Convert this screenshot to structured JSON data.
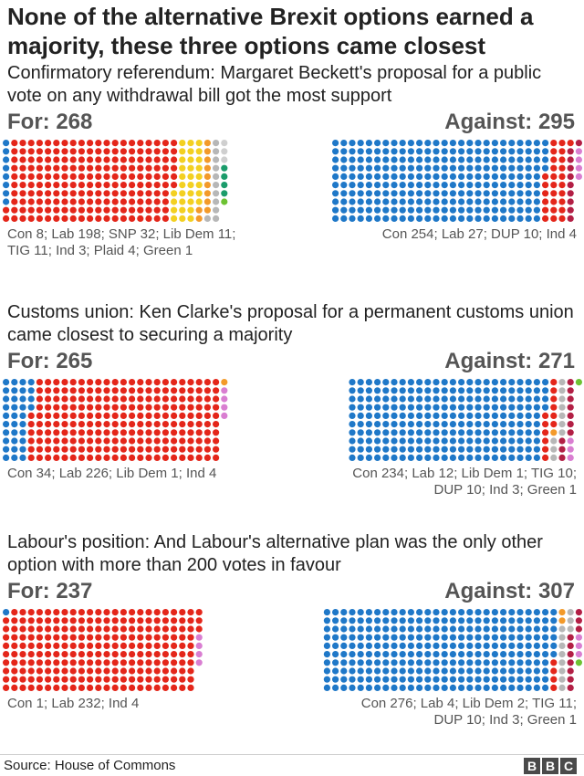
{
  "title": "None of the alternative Brexit options earned a majority, these three options came closest",
  "source": "Source: House of Commons",
  "logo_letters": [
    "B",
    "B",
    "C"
  ],
  "party_colors": {
    "Con": "#1f78c8",
    "Lab": "#e4261a",
    "SNP": "#f3d021",
    "Lib Dem": "#f39a2a",
    "TIG": "#b7b7b7",
    "Ind": "#cfcfcf",
    "Plaid": "#1b9c6b",
    "Green": "#6dc233",
    "DUP": "#b21f45",
    "Plaid_Green_alt": "#d97ed1"
  },
  "chart_data": [
    {
      "type": "waffle",
      "title": "Confirmatory referendum: Margaret Beckett's proposal for a public vote on any withdrawal bill got the most support",
      "for": {
        "label": "For: 268",
        "total": 268,
        "breakdown_lines": [
          "Con 8; Lab 198; SNP 32; Lib Dem 11;",
          "TIG 11; Ind 3; Plaid 4; Green 1"
        ],
        "parties": [
          {
            "party": "Con",
            "seats": 8,
            "color": "#1f78c8"
          },
          {
            "party": "Lab",
            "seats": 198,
            "color": "#e4261a"
          },
          {
            "party": "SNP",
            "seats": 32,
            "color": "#f3d021"
          },
          {
            "party": "Lib Dem",
            "seats": 11,
            "color": "#f39a2a"
          },
          {
            "party": "TIG",
            "seats": 11,
            "color": "#b7b7b7"
          },
          {
            "party": "Ind",
            "seats": 3,
            "color": "#cfcfcf"
          },
          {
            "party": "Plaid",
            "seats": 4,
            "color": "#1b9c6b"
          },
          {
            "party": "Green",
            "seats": 1,
            "color": "#6dc233"
          }
        ]
      },
      "against": {
        "label": "Against: 295",
        "total": 295,
        "breakdown_lines": [
          "Con 254; Lab 27; DUP 10; Ind 4"
        ],
        "parties": [
          {
            "party": "Con",
            "seats": 254,
            "color": "#1f78c8"
          },
          {
            "party": "Lab",
            "seats": 27,
            "color": "#e4261a"
          },
          {
            "party": "DUP",
            "seats": 10,
            "color": "#b21f45"
          },
          {
            "party": "Ind",
            "seats": 4,
            "color": "#d97ed1"
          }
        ]
      }
    },
    {
      "type": "waffle",
      "title": "Customs union: Ken Clarke's proposal for a permanent customs union came closest to securing a majority",
      "for": {
        "label": "For: 265",
        "total": 265,
        "breakdown_lines": [
          "Con 34; Lab 226; Lib Dem 1; Ind 4"
        ],
        "parties": [
          {
            "party": "Con",
            "seats": 34,
            "color": "#1f78c8"
          },
          {
            "party": "Lab",
            "seats": 226,
            "color": "#e4261a"
          },
          {
            "party": "Lib Dem",
            "seats": 1,
            "color": "#f39a2a"
          },
          {
            "party": "Ind",
            "seats": 4,
            "color": "#d97ed1"
          }
        ]
      },
      "against": {
        "label": "Against: 271",
        "total": 271,
        "breakdown_lines": [
          "Con 234; Lab 12; Lib Dem 1; TIG 10;",
          "DUP 10; Ind 3; Green 1"
        ],
        "parties": [
          {
            "party": "Con",
            "seats": 234,
            "color": "#1f78c8"
          },
          {
            "party": "Lab",
            "seats": 12,
            "color": "#e4261a"
          },
          {
            "party": "Lib Dem",
            "seats": 1,
            "color": "#f39a2a"
          },
          {
            "party": "TIG",
            "seats": 10,
            "color": "#b7b7b7"
          },
          {
            "party": "DUP",
            "seats": 10,
            "color": "#b21f45"
          },
          {
            "party": "Ind",
            "seats": 3,
            "color": "#d97ed1"
          },
          {
            "party": "Green",
            "seats": 1,
            "color": "#6dc233"
          }
        ]
      }
    },
    {
      "type": "waffle",
      "title": "Labour's position: And Labour's alternative plan was the only other option with more than 200 votes in favour",
      "for": {
        "label": "For: 237",
        "total": 237,
        "breakdown_lines": [
          "Con 1; Lab 232; Ind 4"
        ],
        "parties": [
          {
            "party": "Con",
            "seats": 1,
            "color": "#1f78c8"
          },
          {
            "party": "Lab",
            "seats": 232,
            "color": "#e4261a"
          },
          {
            "party": "Ind",
            "seats": 4,
            "color": "#d97ed1"
          }
        ]
      },
      "against": {
        "label": "Against: 307",
        "total": 307,
        "breakdown_lines": [
          "Con 276; Lab 4; Lib Dem 2; TIG 11;",
          "DUP 10; Ind 3; Green 1"
        ],
        "parties": [
          {
            "party": "Con",
            "seats": 276,
            "color": "#1f78c8"
          },
          {
            "party": "Lab",
            "seats": 4,
            "color": "#e4261a"
          },
          {
            "party": "Lib Dem",
            "seats": 2,
            "color": "#f39a2a"
          },
          {
            "party": "TIG",
            "seats": 11,
            "color": "#b7b7b7"
          },
          {
            "party": "DUP",
            "seats": 10,
            "color": "#b21f45"
          },
          {
            "party": "Ind",
            "seats": 3,
            "color": "#d97ed1"
          },
          {
            "party": "Green",
            "seats": 1,
            "color": "#6dc233"
          }
        ]
      }
    }
  ]
}
